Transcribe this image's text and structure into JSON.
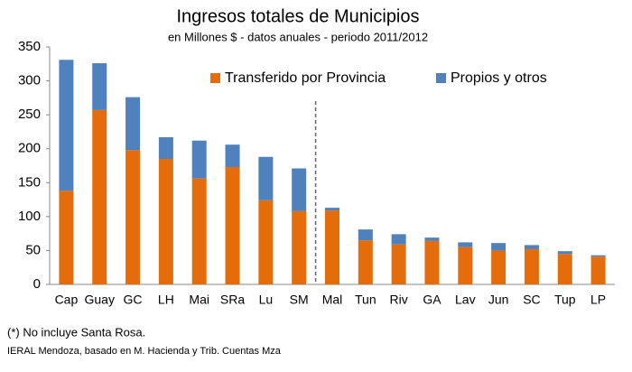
{
  "chart_data": {
    "type": "stacked_bar",
    "title": "Ingresos totales de Municipios",
    "subtitle": "en Millones $ - datos anuales - periodo 2011/2012",
    "categories": [
      "Cap",
      "Guay",
      "GC",
      "LH",
      "Mai",
      "SRa",
      "Lu",
      "SM",
      "Mal",
      "Tun",
      "Riv",
      "GA",
      "Lav",
      "Jun",
      "SC",
      "Tup",
      "LP"
    ],
    "series": [
      {
        "name": "Transferido por Provincia",
        "color": "#e46c0a",
        "values": [
          138,
          257,
          198,
          185,
          156,
          173,
          124,
          108,
          109,
          65,
          59,
          64,
          55,
          50,
          52,
          45,
          41
        ]
      },
      {
        "name": "Propios y otros",
        "color": "#4f81bd",
        "values": [
          193,
          69,
          78,
          32,
          56,
          33,
          64,
          63,
          4,
          16,
          15,
          5,
          7,
          11,
          6,
          4,
          2
        ]
      }
    ],
    "ylim": [
      0,
      350
    ],
    "yticks": [
      0,
      50,
      100,
      150,
      200,
      250,
      300,
      350
    ],
    "notes": [
      "(*) No incluye Santa Rosa.",
      "IERAL Mendoza, basado en M. Hacienda y Trib. Cuentas Mza"
    ]
  }
}
